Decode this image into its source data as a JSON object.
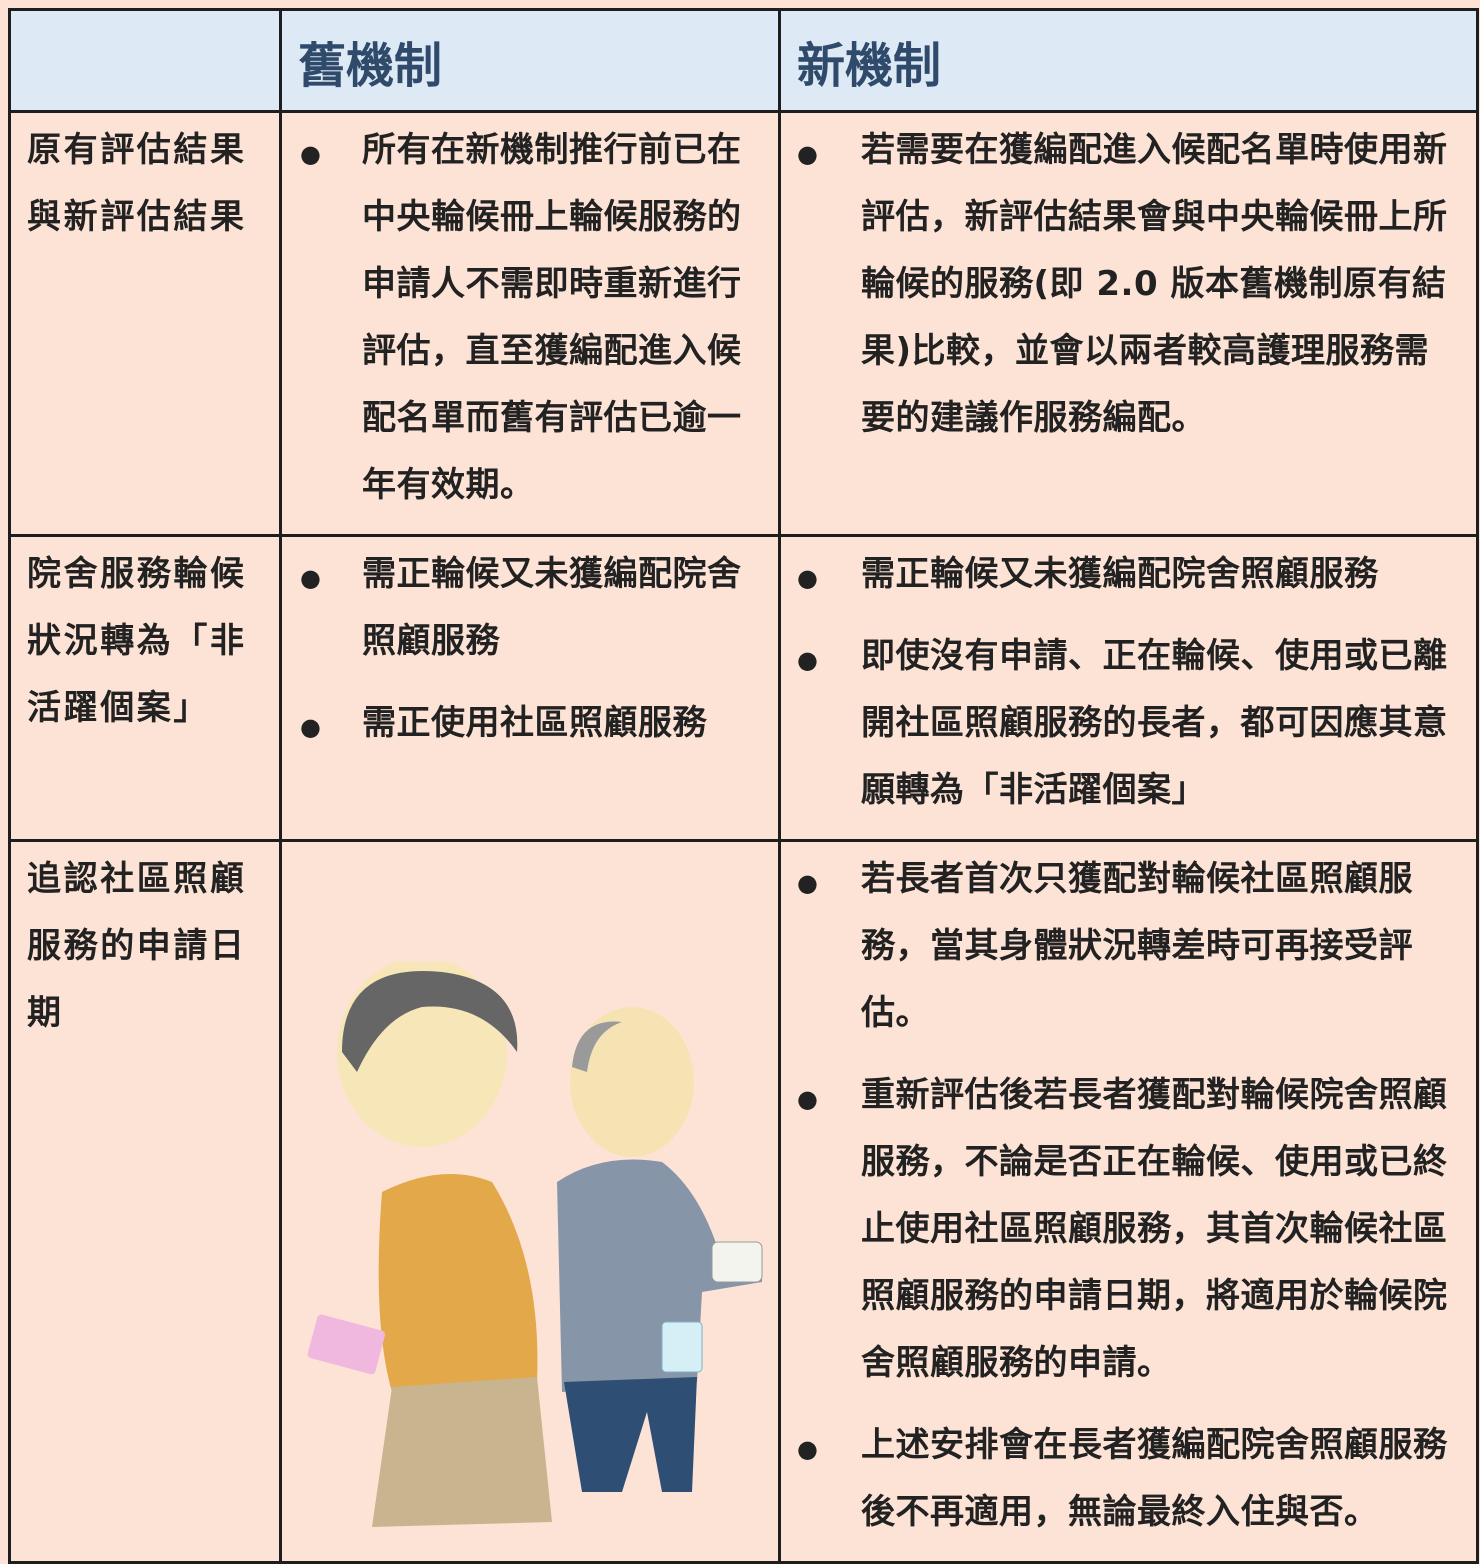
{
  "table": {
    "columns": [
      "舊機制",
      "新機制"
    ],
    "rows": [
      {
        "label": "原有評估結果與新評估結果",
        "old": [
          "所有在新機制推行前已在中央輪候冊上輪候服務的申請人不需即時重新進行評估，直至獲編配進入候配名單而舊有評估已逾一年有效期。"
        ],
        "new": [
          "若需要在獲編配進入候配名單時使用新評估，新評估結果會與中央輪候冊上所輪候的服務(即 2.0 版本舊機制原有結果)比較，並會以兩者較高護理服務需要的建議作服務編配。"
        ]
      },
      {
        "label": "院舍服務輪候狀況轉為「非活躍個案」",
        "old": [
          "需正輪候又未獲編配院舍照顧服務",
          "需正使用社區照顧服務"
        ],
        "new": [
          "需正輪候又未獲編配院舍照顧服務",
          "即使沒有申請、正在輪候、使用或已離開社區照顧服務的長者，都可因應其意願轉為「非活躍個案」"
        ]
      },
      {
        "label": "追認社區照顧服務的申請日期",
        "old": [],
        "new": [
          "若長者首次只獲配對輪候社區照顧服務，當其身體狀況轉差時可再接受評估。",
          "重新評估後若長者獲配對輪候院舍照顧服務，不論是否正在輪候、使用或已終止使用社區照顧服務，其首次輪候社區照顧服務的申請日期，將適用於輪候院舍照顧服務的申請。",
          "上述安排會在長者獲編配院舍照顧服務後不再適用，無論最終入住與否。"
        ]
      }
    ]
  }
}
